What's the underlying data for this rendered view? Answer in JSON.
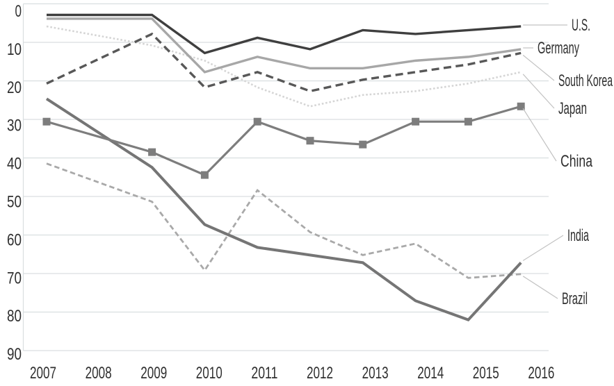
{
  "chart_data": {
    "type": "line",
    "title": "",
    "subtitle": "",
    "legend_position": "direct-labels-right-with-leader-lines",
    "grid": "horizontal-only",
    "background_color": "#ffffff",
    "gridline_color": "#d9dee0",
    "axis_line_color": "#d9dee0",
    "tick_text_color": "#2f2f2f",
    "series_label_color": "#2f2f2f",
    "leader_line_color": "#c2c2c2",
    "x": [
      2007,
      2009,
      2010,
      2011,
      2012,
      2013,
      2014,
      2015,
      2016
    ],
    "x_axis_tick_labels": [
      "2007",
      "2008",
      "2009",
      "2010",
      "2011",
      "2012",
      "2013",
      "2014",
      "2015",
      "2016"
    ],
    "y_axis": {
      "min": 0,
      "max": 90,
      "tick_step": 10,
      "inverted": true,
      "tick_labels": [
        "0",
        "10",
        "20",
        "30",
        "40",
        "50",
        "60",
        "70",
        "80",
        "90"
      ]
    },
    "note": "Ranking chart: lower value = higher rank; axis inverted (0 at top). No data point plotted for 2008.",
    "series": [
      {
        "name": "U.S.",
        "values": [
          1,
          1,
          11,
          7,
          10,
          5,
          6,
          5,
          4
        ],
        "color": "#3f3f3f",
        "line_style": "solid",
        "line_width": 3.4,
        "marker": "none"
      },
      {
        "name": "Germany",
        "values": [
          2,
          2,
          16,
          12,
          15,
          15,
          13,
          12,
          10
        ],
        "color": "#a7a7a7",
        "line_style": "solid",
        "line_width": 3.4,
        "marker": "none"
      },
      {
        "name": "South Korea",
        "values": [
          19,
          6,
          20,
          16,
          21,
          18,
          16,
          14,
          11
        ],
        "color": "#585858",
        "line_style": "dashed",
        "line_width": 3.4,
        "marker": "none"
      },
      {
        "name": "Japan",
        "values": [
          4,
          9,
          13,
          20,
          25,
          22,
          21,
          19,
          16
        ],
        "color": "#d5d5d5",
        "line_style": "dotted",
        "line_width": 2.6,
        "marker": "none"
      },
      {
        "name": "China",
        "values": [
          29,
          37,
          43,
          29,
          34,
          35,
          29,
          29,
          25
        ],
        "color": "#7d7d7d",
        "line_style": "solid",
        "line_width": 3.2,
        "marker": "square"
      },
      {
        "name": "India",
        "values": [
          23,
          41,
          56,
          62,
          64,
          66,
          76,
          81,
          66
        ],
        "color": "#757575",
        "line_style": "solid",
        "line_width": 4,
        "marker": "none"
      },
      {
        "name": "Brazil",
        "values": [
          40,
          50,
          68,
          47,
          58,
          64,
          61,
          70,
          69
        ],
        "color": "#a9a9a9",
        "line_style": "dashed-short",
        "line_width": 2.8,
        "marker": "none"
      }
    ]
  }
}
